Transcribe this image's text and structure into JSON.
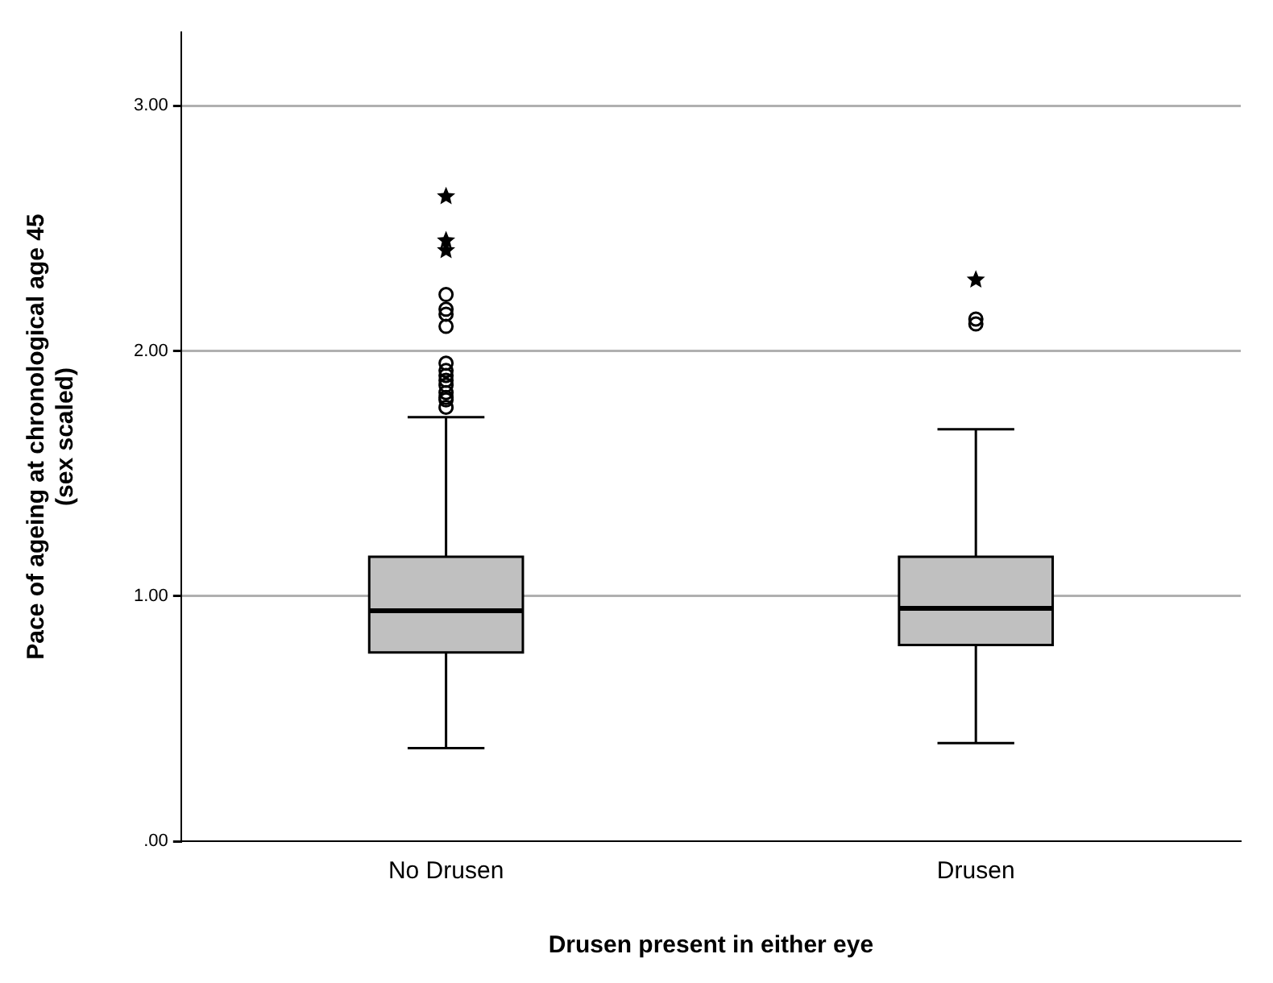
{
  "chart_data": {
    "type": "box",
    "xlabel": "Drusen present in either eye",
    "ylabel": "Pace of ageing at chronological age 45\n(sex scaled)",
    "categories": [
      "No Drusen",
      "Drusen"
    ],
    "color": "#c0c0c0",
    "boxes": [
      {
        "low": 0.38,
        "q1": 0.77,
        "median": 0.94,
        "q3": 1.16,
        "high": 1.73,
        "outliers": [
          2.23,
          2.17,
          2.15,
          2.1,
          1.95,
          1.92,
          1.9,
          1.88,
          1.86,
          1.83,
          1.81,
          1.8,
          1.77
        ]
      },
      {
        "low": 0.4,
        "q1": 0.8,
        "median": 0.95,
        "q3": 1.16,
        "high": 1.68,
        "outliers": [
          2.13,
          2.11
        ]
      }
    ],
    "series": [
      {
        "type": "scatter",
        "marker": "star",
        "color": "#000000",
        "x": [
          "No Drusen",
          "No Drusen",
          "No Drusen",
          "Drusen"
        ],
        "values": [
          2.63,
          2.45,
          2.41,
          2.29
        ]
      }
    ],
    "ylim": [
      0,
      3.3
    ],
    "yticks": [
      {
        "value": 0,
        "label": ".00"
      },
      {
        "value": 1,
        "label": "1.00"
      },
      {
        "value": 2,
        "label": "2.00"
      },
      {
        "value": 3,
        "label": "3.00"
      }
    ],
    "grid": "y",
    "legend": false
  }
}
